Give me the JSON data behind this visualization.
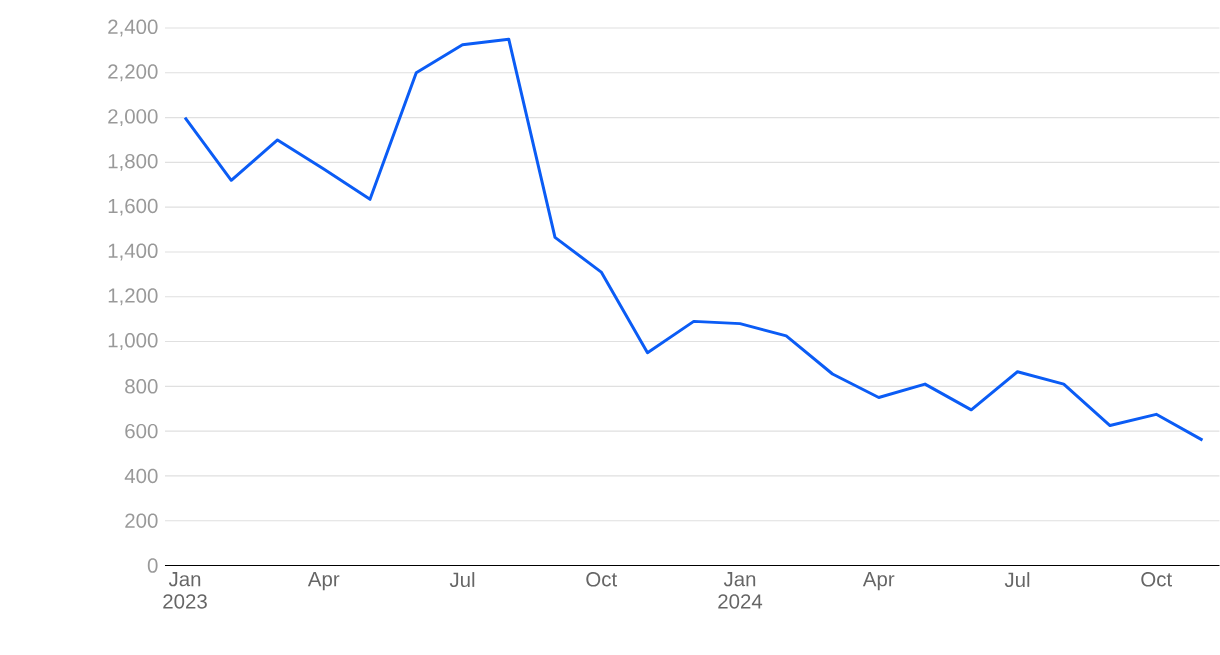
{
  "chart_data": {
    "type": "line",
    "x": [
      "2023-01",
      "2023-02",
      "2023-03",
      "2023-04",
      "2023-05",
      "2023-06",
      "2023-07",
      "2023-08",
      "2023-09",
      "2023-10",
      "2023-11",
      "2023-12",
      "2024-01",
      "2024-02",
      "2024-03",
      "2024-04",
      "2024-05",
      "2024-06",
      "2024-07",
      "2024-08",
      "2024-09",
      "2024-10",
      "2024-11"
    ],
    "series": [
      {
        "color": "#0b5cf5",
        "values": [
          2000,
          1720,
          1900,
          1770,
          1635,
          2200,
          2325,
          2350,
          1465,
          1310,
          950,
          1090,
          1080,
          1025,
          855,
          750,
          810,
          695,
          865,
          810,
          625,
          675,
          560
        ]
      }
    ],
    "xlim": [
      "2022-12-18",
      "2024-11-12"
    ],
    "xticks": [
      {
        "value": "2023-01",
        "label": "Jan 2023"
      },
      {
        "value": "2023-04",
        "label": "Apr"
      },
      {
        "value": "2023-07",
        "label": "Jul"
      },
      {
        "value": "2023-10",
        "label": "Oct"
      },
      {
        "value": "2024-01",
        "label": "Jan 2024"
      },
      {
        "value": "2024-04",
        "label": "Apr"
      },
      {
        "value": "2024-07",
        "label": "Jul"
      },
      {
        "value": "2024-10",
        "label": "Oct"
      }
    ],
    "ylim": [
      0,
      2400
    ],
    "yticks": [
      {
        "value": 0,
        "label": "0"
      },
      {
        "value": 200,
        "label": "200"
      },
      {
        "value": 400,
        "label": "400"
      },
      {
        "value": 600,
        "label": "600"
      },
      {
        "value": 800,
        "label": "800"
      },
      {
        "value": 1000,
        "label": "1,000"
      },
      {
        "value": 1200,
        "label": "1,200"
      },
      {
        "value": 1400,
        "label": "1,400"
      },
      {
        "value": 1600,
        "label": "1,600"
      },
      {
        "value": 1800,
        "label": "1,800"
      },
      {
        "value": 2000,
        "label": "2,000"
      },
      {
        "value": 2200,
        "label": "2,200"
      },
      {
        "value": 2400,
        "label": "2,400"
      }
    ],
    "grid": "y",
    "legend": false,
    "marker": "none",
    "line_style": "solid"
  }
}
